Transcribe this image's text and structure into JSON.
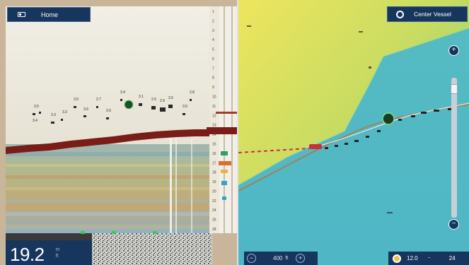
{
  "sonar": {
    "home_label": "Home",
    "depth": {
      "value": "19.2",
      "unit_top": "m",
      "unit_bottom": "ft"
    },
    "target_labels": [
      "3.5",
      "3.3",
      "3.3",
      "3.0",
      "3.6",
      "2.7",
      "2.6",
      "3.4",
      "3.1",
      "2.6",
      "2.9",
      "3.5",
      "3.0",
      "2.8",
      "3.4"
    ],
    "scale_marks": [
      "1",
      "2",
      "3",
      "4",
      "5",
      "6",
      "7",
      "8",
      "9",
      "10",
      "11",
      "12",
      "13",
      "14",
      "15",
      "16",
      "17",
      "18",
      "19",
      "20",
      "22",
      "24",
      "26",
      "28"
    ]
  },
  "chart": {
    "center_label": "Center Vessel",
    "zoom": {
      "scale": "400",
      "unit": "ft"
    },
    "temperature": {
      "low": "12.0",
      "separator": "~",
      "high": "24"
    },
    "slider": {
      "plus": "+",
      "minus": "−",
      "level": 0.05
    },
    "colors": {
      "shallow": "#efe35d",
      "mid": "#9ccf6a",
      "deep": "#4fb9bf",
      "route": "#c86b2a",
      "vessel": "#c8323a"
    }
  }
}
